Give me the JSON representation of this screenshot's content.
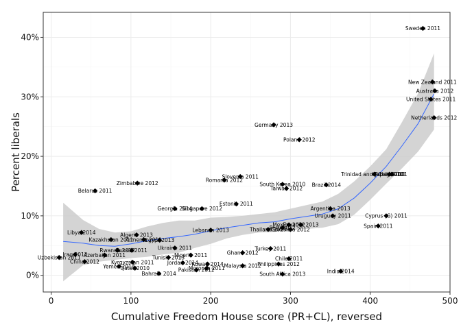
{
  "chart_data": {
    "type": "scatter",
    "title": "",
    "xlabel": "Cumulative Freedom House score (PR+CL), reversed",
    "ylabel": "Percent liberals",
    "xlim": [
      -10,
      500
    ],
    "ylim": [
      -2.8,
      44.2
    ],
    "x_ticks": [
      0,
      100,
      200,
      300,
      400,
      500
    ],
    "y_ticks": [
      0,
      10,
      20,
      30,
      40
    ],
    "y_tick_labels": [
      "0%",
      "10%",
      "20%",
      "30%",
      "40%"
    ],
    "grid": true,
    "smoother": {
      "method": "loess",
      "color": "#3366ff",
      "band_color": "#cccccc",
      "x": [
        15,
        40,
        60,
        80,
        100,
        120,
        140,
        160,
        180,
        200,
        220,
        240,
        260,
        280,
        300,
        320,
        340,
        360,
        380,
        400,
        420,
        440,
        460,
        480
      ],
      "fit": [
        5.7,
        5.4,
        5.0,
        4.9,
        5.3,
        5.8,
        6.2,
        6.5,
        6.9,
        7.5,
        8.0,
        8.4,
        8.8,
        9.0,
        9.5,
        9.9,
        10.3,
        11.2,
        13.0,
        15.5,
        18.3,
        21.8,
        25.5,
        30.5
      ],
      "lower": [
        -1.0,
        1.7,
        2.3,
        2.6,
        2.9,
        3.1,
        3.5,
        3.8,
        4.6,
        5.3,
        6.2,
        6.8,
        7.2,
        7.3,
        7.6,
        7.8,
        8.0,
        8.6,
        10.2,
        12.7,
        15.4,
        18.0,
        20.8,
        24.5
      ],
      "upper": [
        12.2,
        9.3,
        7.8,
        7.2,
        7.4,
        8.2,
        8.8,
        9.2,
        9.2,
        9.7,
        9.8,
        10.0,
        10.3,
        10.6,
        11.2,
        11.8,
        12.4,
        13.7,
        15.8,
        18.3,
        21.2,
        25.8,
        30.6,
        37.3
      ]
    },
    "points": [
      {
        "label": "Sweden 2011",
        "x": 466,
        "y": 41.5
      },
      {
        "label": "New Zealand 2011",
        "x": 478,
        "y": 32.5
      },
      {
        "label": "Australia 2012",
        "x": 481,
        "y": 31.0
      },
      {
        "label": "United States 2011",
        "x": 476,
        "y": 29.6
      },
      {
        "label": "Netherlands 2012",
        "x": 480,
        "y": 26.5
      },
      {
        "label": "Germany 2013",
        "x": 279,
        "y": 25.3
      },
      {
        "label": "Poland 2012",
        "x": 311,
        "y": 22.8
      },
      {
        "label": "Trinidad and Tobago 2011",
        "x": 405,
        "y": 17.0
      },
      {
        "label": "Japan 2010",
        "x": 424,
        "y": 17.0
      },
      {
        "label": "Chile 2011",
        "x": 427,
        "y": 17.0
      },
      {
        "label": "Slovenia 2011",
        "x": 237,
        "y": 16.6
      },
      {
        "label": "Romania 2012",
        "x": 217,
        "y": 16.0
      },
      {
        "label": "Zimbabwe 2012",
        "x": 108,
        "y": 15.5
      },
      {
        "label": "South Korea 2010",
        "x": 290,
        "y": 15.3
      },
      {
        "label": "Brazil 2014",
        "x": 345,
        "y": 15.2
      },
      {
        "label": "Taiwan 2012",
        "x": 295,
        "y": 14.6
      },
      {
        "label": "Belarus 2011",
        "x": 55,
        "y": 14.2
      },
      {
        "label": "Estonia 2011",
        "x": 232,
        "y": 12.0
      },
      {
        "label": "Georgia 2014",
        "x": 155,
        "y": 11.2
      },
      {
        "label": "Singapore 2012",
        "x": 189,
        "y": 11.2
      },
      {
        "label": "Argentina 2013",
        "x": 350,
        "y": 11.2
      },
      {
        "label": "Uruguay 2011",
        "x": 353,
        "y": 10.0
      },
      {
        "label": "Cyprus (G) 2011",
        "x": 420,
        "y": 10.0
      },
      {
        "label": "Spain 2011",
        "x": 410,
        "y": 8.3
      },
      {
        "label": "Mexico 2012",
        "x": 298,
        "y": 8.5
      },
      {
        "label": "Ecuador 2013",
        "x": 313,
        "y": 8.5
      },
      {
        "label": "Peru 2012",
        "x": 290,
        "y": 8.0
      },
      {
        "label": "Thailand 2013",
        "x": 272,
        "y": 7.7
      },
      {
        "label": "Colombia 2012",
        "x": 300,
        "y": 7.7
      },
      {
        "label": "Lebanon 2013",
        "x": 200,
        "y": 7.6
      },
      {
        "label": "Libya 2014",
        "x": 38,
        "y": 7.2
      },
      {
        "label": "Algeria 2013",
        "x": 107,
        "y": 6.8
      },
      {
        "label": "Kazakhstan 2011",
        "x": 75,
        "y": 6.0
      },
      {
        "label": "Armenia 2011",
        "x": 116,
        "y": 6.0
      },
      {
        "label": "Egypt 2013",
        "x": 136,
        "y": 5.9
      },
      {
        "label": "Ukraine 2011",
        "x": 155,
        "y": 4.6
      },
      {
        "label": "Rwanda 2012",
        "x": 83,
        "y": 4.2
      },
      {
        "label": "Russia 2011",
        "x": 101,
        "y": 4.2
      },
      {
        "label": "Turkey 2011",
        "x": 275,
        "y": 4.5
      },
      {
        "label": "Ghana 2012",
        "x": 240,
        "y": 3.8
      },
      {
        "label": "Nigeria 2011",
        "x": 175,
        "y": 3.4
      },
      {
        "label": "Uzbekistan 2011",
        "x": 10,
        "y": 3.0
      },
      {
        "label": "Iraq 2012",
        "x": 30,
        "y": 3.5
      },
      {
        "label": "Azerbaijan 2011",
        "x": 67,
        "y": 3.4
      },
      {
        "label": "Tunisia 2013",
        "x": 147,
        "y": 3.0
      },
      {
        "label": "Chile 2011",
        "x": 298,
        "y": 2.8
      },
      {
        "label": "China 2012",
        "x": 42,
        "y": 2.3
      },
      {
        "label": "Kyrgyzstan 2011",
        "x": 102,
        "y": 2.2
      },
      {
        "label": "Jordan 2014",
        "x": 165,
        "y": 2.1
      },
      {
        "label": "Kuwait 2014",
        "x": 196,
        "y": 1.9
      },
      {
        "label": "Malaysia 2012",
        "x": 240,
        "y": 1.6
      },
      {
        "label": "Philippines 2012",
        "x": 285,
        "y": 1.9
      },
      {
        "label": "Yemen 2014",
        "x": 85,
        "y": 1.5
      },
      {
        "label": "Qatar 2010",
        "x": 105,
        "y": 1.2
      },
      {
        "label": "Morocco 2011",
        "x": 195,
        "y": 1.2
      },
      {
        "label": "Pakistan 2012",
        "x": 182,
        "y": 0.9
      },
      {
        "label": "India 2014",
        "x": 363,
        "y": 0.7
      },
      {
        "label": "Bahrain 2014",
        "x": 135,
        "y": 0.3
      },
      {
        "label": "South Africa 2013",
        "x": 290,
        "y": 0.2
      }
    ]
  }
}
